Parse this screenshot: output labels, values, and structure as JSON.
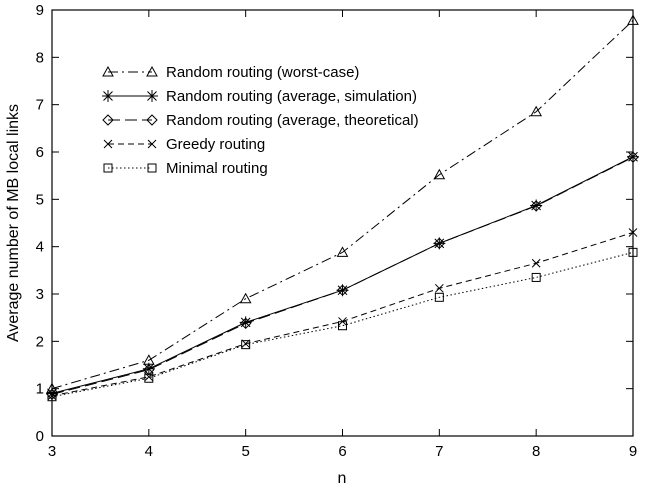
{
  "chart_data": {
    "type": "line",
    "title": "",
    "xlabel": "n",
    "ylabel": "Average number of MB local links",
    "x": [
      3,
      4,
      5,
      6,
      7,
      8,
      9
    ],
    "xlim": [
      3,
      9
    ],
    "ylim": [
      0,
      9
    ],
    "xticks": [
      "3",
      "4",
      "5",
      "6",
      "7",
      "8",
      "9"
    ],
    "yticks": [
      "0",
      "1",
      "2",
      "3",
      "4",
      "5",
      "6",
      "7",
      "8",
      "9"
    ],
    "grid": false,
    "legend_position": "top-left",
    "series": [
      {
        "name": "Random routing (worst-case)",
        "line_style": "dash-dot",
        "marker": "triangle",
        "values": [
          1.0,
          1.6,
          2.9,
          3.88,
          5.52,
          6.85,
          8.78
        ]
      },
      {
        "name": "Random routing (average, simulation)",
        "line_style": "solid",
        "marker": "asterisk",
        "values": [
          0.9,
          1.42,
          2.4,
          3.08,
          4.07,
          4.87,
          5.9
        ]
      },
      {
        "name": "Random routing (average, theoretical)",
        "line_style": "long-dash",
        "marker": "diamond",
        "values": [
          0.88,
          1.4,
          2.38,
          3.08,
          4.07,
          4.86,
          5.89
        ]
      },
      {
        "name": "Greedy routing",
        "line_style": "dashed",
        "marker": "cross",
        "values": [
          0.85,
          1.25,
          1.95,
          2.42,
          3.12,
          3.65,
          4.3
        ]
      },
      {
        "name": "Minimal routing",
        "line_style": "dotted",
        "marker": "square",
        "values": [
          0.83,
          1.22,
          1.93,
          2.33,
          2.93,
          3.35,
          3.88
        ]
      }
    ]
  }
}
